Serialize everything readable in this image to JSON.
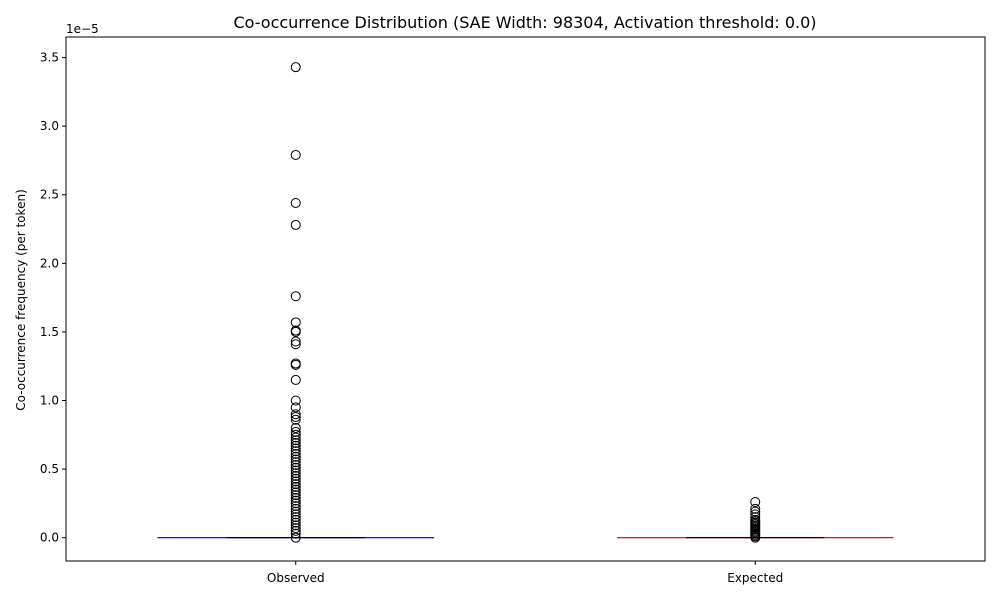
{
  "chart_data": {
    "type": "box",
    "title": "Co-occurrence Distribution (SAE Width: 98304, Activation threshold: 0.0)",
    "xlabel": "",
    "ylabel": "Co-occurrence frequency (per token)",
    "offset_label": "1e−5",
    "y_scale_factor": 1e-05,
    "ylim": [
      -0.17,
      3.65
    ],
    "y_ticks": [
      0.0,
      0.5,
      1.0,
      1.5,
      2.0,
      2.5,
      3.0,
      3.5
    ],
    "y_tick_labels": [
      "0.0",
      "0.5",
      "1.0",
      "1.5",
      "2.0",
      "2.5",
      "3.0",
      "3.5"
    ],
    "grid": false,
    "legend": "none",
    "categories": [
      "Observed",
      "Expected"
    ],
    "series": [
      {
        "category": "Observed",
        "color": "#0000ff",
        "median": 0.0,
        "q1": 0.0,
        "q3": 0.0,
        "whisker_low": 0.0,
        "whisker_high": 0.0,
        "outliers": [
          3.43,
          2.79,
          2.44,
          2.28,
          1.76,
          1.57,
          1.51,
          1.5,
          1.43,
          1.41,
          1.27,
          1.26,
          1.15,
          1.0,
          0.95,
          0.9,
          0.88,
          0.86,
          0.8,
          0.77,
          0.75,
          0.73,
          0.71,
          0.69,
          0.67,
          0.65,
          0.63,
          0.61,
          0.59,
          0.57,
          0.55,
          0.53,
          0.51,
          0.49,
          0.47,
          0.45,
          0.43,
          0.41,
          0.39,
          0.37,
          0.35,
          0.33,
          0.31,
          0.29,
          0.27,
          0.25,
          0.23,
          0.21,
          0.19,
          0.17,
          0.15,
          0.13,
          0.11,
          0.09,
          0.07,
          0.05,
          0.03,
          0.0
        ]
      },
      {
        "category": "Expected",
        "color": "#ff0000",
        "median": 0.0,
        "q1": 0.0,
        "q3": 0.0,
        "whisker_low": 0.0,
        "whisker_high": 0.0,
        "outliers": [
          0.26,
          0.21,
          0.19,
          0.17,
          0.15,
          0.13,
          0.12,
          0.11,
          0.1,
          0.09,
          0.08,
          0.07,
          0.06,
          0.05,
          0.04,
          0.03,
          0.02,
          0.01,
          0.0
        ]
      }
    ]
  }
}
